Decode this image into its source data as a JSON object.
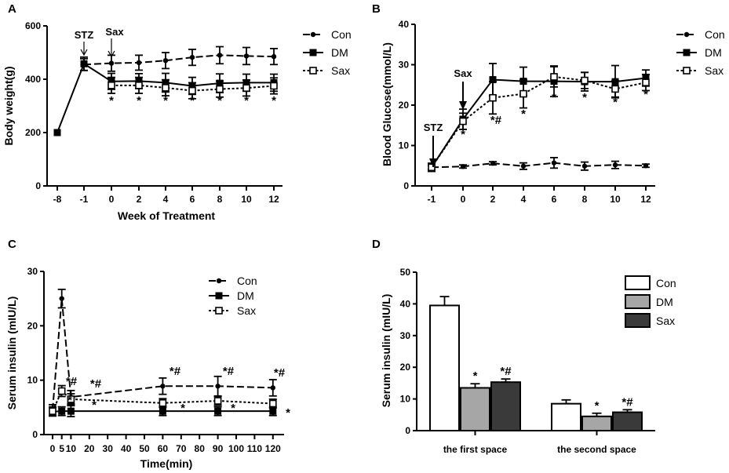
{
  "chart_data": [
    {
      "panel": "A",
      "type": "line",
      "xlabel": "Week of Treatment",
      "ylabel": "Body weight(g)",
      "x_ticks": [
        "-8",
        "-1",
        "0",
        "2",
        "4",
        "6",
        "8",
        "10",
        "12"
      ],
      "y_ticks": [
        "0",
        "200",
        "400",
        "600"
      ],
      "ylim": [
        0,
        600
      ],
      "legend": [
        "Con",
        "DM",
        "Sax"
      ],
      "annotations": [
        "STZ",
        "Sax"
      ],
      "series": [
        {
          "name": "Con",
          "x": [
            -1,
            0,
            2,
            4,
            6,
            8,
            10,
            12
          ],
          "values": [
            455,
            460,
            462,
            470,
            482,
            490,
            487,
            485
          ],
          "err": [
            22,
            30,
            28,
            30,
            30,
            32,
            32,
            30
          ]
        },
        {
          "name": "DM",
          "x": [
            -8,
            -1,
            0,
            2,
            4,
            6,
            8,
            10,
            12
          ],
          "values": [
            200,
            458,
            392,
            393,
            387,
            375,
            385,
            387,
            387
          ],
          "err": [
            0,
            25,
            30,
            28,
            35,
            32,
            35,
            32,
            32
          ]
        },
        {
          "name": "Sax",
          "x": [
            0,
            2,
            4,
            6,
            8,
            10,
            12
          ],
          "values": [
            377,
            377,
            368,
            357,
            363,
            367,
            375
          ],
          "err": [
            30,
            30,
            30,
            30,
            30,
            30,
            30
          ]
        }
      ],
      "significance": [
        {
          "x": 0,
          "label": "*"
        },
        {
          "x": 2,
          "label": "*"
        },
        {
          "x": 4,
          "label": "*"
        },
        {
          "x": 6,
          "label": "*"
        },
        {
          "x": 8,
          "label": "*"
        },
        {
          "x": 10,
          "label": "*"
        },
        {
          "x": 12,
          "label": "*"
        }
      ]
    },
    {
      "panel": "B",
      "type": "line",
      "xlabel": "",
      "ylabel": "Blood Glucose(mmol/L)",
      "x_ticks": [
        "-1",
        "0",
        "2",
        "4",
        "6",
        "8",
        "10",
        "12"
      ],
      "y_ticks": [
        "0",
        "10",
        "20",
        "30",
        "40"
      ],
      "ylim": [
        0,
        40
      ],
      "legend": [
        "Con",
        "DM",
        "Sax"
      ],
      "annotations": [
        "STZ",
        "Sax"
      ],
      "series": [
        {
          "name": "Con",
          "x": [
            -1,
            0,
            2,
            4,
            6,
            8,
            10,
            12
          ],
          "values": [
            4.6,
            4.8,
            5.6,
            4.9,
            5.7,
            4.9,
            5.2,
            5.0
          ],
          "err": [
            0.5,
            0.4,
            0.4,
            0.8,
            1.3,
            1.0,
            0.9,
            0.4
          ]
        },
        {
          "name": "DM",
          "x": [
            -1,
            0,
            2,
            4,
            6,
            8,
            10,
            12
          ],
          "values": [
            4.6,
            16.5,
            26.3,
            25.9,
            25.9,
            25.8,
            25.8,
            26.7
          ],
          "err": [
            1.0,
            2.5,
            4.0,
            3.5,
            3.8,
            2.3,
            4.0,
            2.0
          ]
        },
        {
          "name": "Sax",
          "x": [
            -1,
            0,
            2,
            4,
            6,
            8,
            10,
            12
          ],
          "values": [
            4.6,
            16.0,
            21.8,
            22.8,
            27.0,
            26.1,
            24.0,
            25.6
          ],
          "err": [
            1.0,
            2.0,
            4.0,
            3.5,
            2.5,
            2.0,
            2.0,
            2.0
          ]
        }
      ],
      "significance": [
        {
          "x": 0,
          "label": "*"
        },
        {
          "x": 2,
          "label": "*#"
        },
        {
          "x": 4,
          "label": "*"
        },
        {
          "x": 6,
          "label": "*"
        },
        {
          "x": 8,
          "label": "*"
        },
        {
          "x": 10,
          "label": "*"
        },
        {
          "x": 12,
          "label": "*"
        }
      ]
    },
    {
      "panel": "C",
      "type": "line",
      "xlabel": "Time(min)",
      "ylabel": "Serum insulin (mIU/L)",
      "x_ticks": [
        "0",
        "5",
        "10",
        "20",
        "30",
        "40",
        "50",
        "60",
        "70",
        "80",
        "90",
        "100",
        "110",
        "120"
      ],
      "y_ticks": [
        "0",
        "10",
        "20",
        "30"
      ],
      "ylim": [
        0,
        30
      ],
      "legend": [
        "Con",
        "DM",
        "Sax"
      ],
      "series": [
        {
          "name": "Con",
          "x": [
            0,
            5,
            10,
            60,
            90,
            120
          ],
          "values": [
            4.5,
            25.0,
            6.9,
            8.9,
            8.9,
            8.6
          ],
          "err": [
            1.0,
            1.7,
            1.2,
            1.5,
            1.8,
            1.5
          ]
        },
        {
          "name": "DM",
          "x": [
            0,
            5,
            10,
            60,
            90,
            120
          ],
          "values": [
            4.2,
            4.3,
            4.3,
            4.3,
            4.3,
            4.3
          ],
          "err": [
            0.8,
            0.8,
            1.0,
            0.8,
            0.8,
            0.8
          ]
        },
        {
          "name": "Sax",
          "x": [
            0,
            5,
            10,
            60,
            90,
            120
          ],
          "values": [
            4.3,
            8.0,
            6.5,
            5.8,
            6.2,
            5.7
          ],
          "err": [
            0.8,
            1.0,
            1.0,
            0.8,
            0.8,
            0.8
          ]
        }
      ],
      "significance": [
        {
          "x": 5,
          "label": "*#"
        },
        {
          "x": 5,
          "label": "*"
        },
        {
          "x": 10,
          "label": "*#"
        },
        {
          "x": 10,
          "label": "*"
        },
        {
          "x": 60,
          "label": "*#"
        },
        {
          "x": 60,
          "label": "*"
        },
        {
          "x": 90,
          "label": "*#"
        },
        {
          "x": 90,
          "label": "*"
        },
        {
          "x": 120,
          "label": "*#"
        },
        {
          "x": 120,
          "label": "*"
        }
      ]
    },
    {
      "panel": "D",
      "type": "bar",
      "categories": [
        "the first space",
        "the second space"
      ],
      "ylabel": "Serum insulin (mIU/L)",
      "y_ticks": [
        "0",
        "10",
        "20",
        "30",
        "40",
        "50"
      ],
      "ylim": [
        0,
        50
      ],
      "series": [
        {
          "name": "Con",
          "color": "#ffffff",
          "values": [
            39.5,
            8.5
          ],
          "err": [
            2.8,
            1.2
          ]
        },
        {
          "name": "DM",
          "color": "#a6a6a6",
          "values": [
            13.5,
            4.5
          ],
          "err": [
            1.3,
            1.0
          ]
        },
        {
          "name": "Sax",
          "color": "#3a3a3a",
          "values": [
            15.3,
            5.8
          ],
          "err": [
            1.0,
            0.8
          ]
        }
      ],
      "significance": [
        {
          "category": "the first space",
          "series": "DM",
          "label": "*"
        },
        {
          "category": "the first space",
          "series": "Sax",
          "label": "*#"
        },
        {
          "category": "the second space",
          "series": "DM",
          "label": "*"
        },
        {
          "category": "the second space",
          "series": "Sax",
          "label": "*#"
        }
      ]
    }
  ]
}
